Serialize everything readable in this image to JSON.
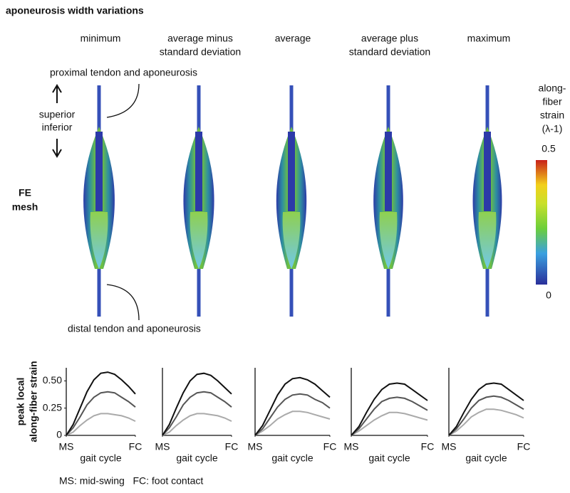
{
  "figure": {
    "title": "aponeurosis width variations",
    "columns": [
      [
        "minimum"
      ],
      [
        "average minus",
        "standard deviation"
      ],
      [
        "average"
      ],
      [
        "average plus",
        "standard deviation"
      ],
      [
        "maximum"
      ]
    ],
    "proximal_label": "proximal tendon and aponeurosis",
    "distal_label": "distal tendon and aponeurosis",
    "superior": "superior",
    "inferior": "inferior",
    "row_label": [
      "FE",
      "mesh"
    ],
    "colorbar_title": [
      "along-",
      "fiber",
      "strain",
      "(λ-1)"
    ],
    "colorbar_max": "0.5",
    "colorbar_min": "0",
    "footnote": "MS: mid-swing   FC: foot contact"
  },
  "chart_data": [
    {
      "type": "line",
      "ylabel": [
        "peak local",
        "along-fiber strain"
      ],
      "xlabel": "gait cycle",
      "x": [
        0,
        0.1,
        0.2,
        0.3,
        0.4,
        0.5,
        0.6,
        0.7,
        0.8,
        0.9,
        1.0
      ],
      "xlim": [
        0,
        1
      ],
      "xticks": [
        {
          "value": 0,
          "label": "MS"
        },
        {
          "value": 1,
          "label": "FC"
        }
      ],
      "ylim": [
        0,
        0.62
      ],
      "yticks": [
        0,
        0.25,
        {
          "value": 0.5,
          "label": "0.50"
        }
      ],
      "series": [
        {
          "color": "#111111",
          "values": [
            0,
            0.1,
            0.25,
            0.4,
            0.51,
            0.57,
            0.58,
            0.56,
            0.51,
            0.45,
            0.38
          ]
        },
        {
          "color": "#555555",
          "values": [
            0,
            0.07,
            0.17,
            0.28,
            0.35,
            0.39,
            0.4,
            0.39,
            0.35,
            0.31,
            0.26
          ]
        },
        {
          "color": "#aaaaaa",
          "values": [
            0,
            0.03,
            0.09,
            0.14,
            0.18,
            0.2,
            0.2,
            0.19,
            0.18,
            0.16,
            0.13
          ]
        }
      ]
    },
    {
      "type": "line",
      "xlabel": "gait cycle",
      "x": [
        0,
        0.1,
        0.2,
        0.3,
        0.4,
        0.5,
        0.6,
        0.7,
        0.8,
        0.9,
        1.0
      ],
      "xlim": [
        0,
        1
      ],
      "xticks": [
        {
          "value": 0,
          "label": "MS"
        },
        {
          "value": 1,
          "label": "FC"
        }
      ],
      "ylim": [
        0,
        0.62
      ],
      "series": [
        {
          "color": "#111111",
          "values": [
            0,
            0.1,
            0.25,
            0.39,
            0.5,
            0.56,
            0.57,
            0.55,
            0.5,
            0.44,
            0.38
          ]
        },
        {
          "color": "#555555",
          "values": [
            0,
            0.07,
            0.17,
            0.28,
            0.35,
            0.39,
            0.4,
            0.39,
            0.35,
            0.31,
            0.26
          ]
        },
        {
          "color": "#aaaaaa",
          "values": [
            0,
            0.03,
            0.09,
            0.14,
            0.18,
            0.2,
            0.2,
            0.19,
            0.18,
            0.16,
            0.13
          ]
        }
      ]
    },
    {
      "type": "line",
      "xlabel": "gait cycle",
      "x": [
        0,
        0.1,
        0.2,
        0.3,
        0.4,
        0.5,
        0.6,
        0.7,
        0.8,
        0.9,
        1.0
      ],
      "xlim": [
        0,
        1
      ],
      "xticks": [
        {
          "value": 0,
          "label": "MS"
        },
        {
          "value": 1,
          "label": "FC"
        }
      ],
      "ylim": [
        0,
        0.62
      ],
      "series": [
        {
          "color": "#111111",
          "values": [
            0,
            0.09,
            0.23,
            0.37,
            0.47,
            0.52,
            0.53,
            0.51,
            0.47,
            0.41,
            0.35
          ]
        },
        {
          "color": "#555555",
          "values": [
            0,
            0.06,
            0.16,
            0.26,
            0.33,
            0.37,
            0.38,
            0.37,
            0.33,
            0.3,
            0.25
          ]
        },
        {
          "color": "#aaaaaa",
          "values": [
            0,
            0.04,
            0.09,
            0.15,
            0.19,
            0.22,
            0.22,
            0.21,
            0.19,
            0.17,
            0.15
          ]
        }
      ]
    },
    {
      "type": "line",
      "xlabel": "gait cycle",
      "x": [
        0,
        0.1,
        0.2,
        0.3,
        0.4,
        0.5,
        0.6,
        0.7,
        0.8,
        0.9,
        1.0
      ],
      "xlim": [
        0,
        1
      ],
      "xticks": [
        {
          "value": 0,
          "label": "MS"
        },
        {
          "value": 1,
          "label": "FC"
        }
      ],
      "ylim": [
        0,
        0.62
      ],
      "series": [
        {
          "color": "#111111",
          "values": [
            0,
            0.08,
            0.21,
            0.33,
            0.42,
            0.47,
            0.48,
            0.47,
            0.42,
            0.37,
            0.32
          ]
        },
        {
          "color": "#555555",
          "values": [
            0,
            0.06,
            0.15,
            0.24,
            0.31,
            0.34,
            0.35,
            0.34,
            0.31,
            0.27,
            0.23
          ]
        },
        {
          "color": "#aaaaaa",
          "values": [
            0,
            0.04,
            0.09,
            0.14,
            0.18,
            0.21,
            0.21,
            0.2,
            0.18,
            0.16,
            0.14
          ]
        }
      ]
    },
    {
      "type": "line",
      "xlabel": "gait cycle",
      "x": [
        0,
        0.1,
        0.2,
        0.3,
        0.4,
        0.5,
        0.6,
        0.7,
        0.8,
        0.9,
        1.0
      ],
      "xlim": [
        0,
        1
      ],
      "xticks": [
        {
          "value": 0,
          "label": "MS"
        },
        {
          "value": 1,
          "label": "FC"
        }
      ],
      "ylim": [
        0,
        0.62
      ],
      "series": [
        {
          "color": "#111111",
          "values": [
            0,
            0.08,
            0.21,
            0.33,
            0.42,
            0.47,
            0.48,
            0.47,
            0.42,
            0.37,
            0.32
          ]
        },
        {
          "color": "#555555",
          "values": [
            0,
            0.06,
            0.15,
            0.25,
            0.32,
            0.35,
            0.36,
            0.35,
            0.32,
            0.28,
            0.24
          ]
        },
        {
          "color": "#aaaaaa",
          "values": [
            0,
            0.04,
            0.1,
            0.17,
            0.21,
            0.24,
            0.24,
            0.23,
            0.21,
            0.19,
            0.16
          ]
        }
      ]
    }
  ]
}
